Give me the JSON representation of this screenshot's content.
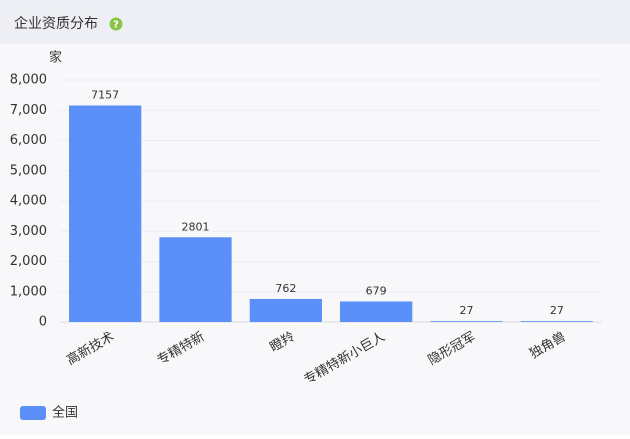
{
  "chart_data": {
    "type": "bar",
    "title": "企业资质分布",
    "y_label": "家",
    "categories": [
      "高新技术",
      "专精特新",
      "瞪羚",
      "专精特新小巨人",
      "隐形冠军",
      "独角兽"
    ],
    "series": [
      {
        "name": "全国",
        "color": "#5b8ff9",
        "values": [
          7157,
          2801,
          762,
          679,
          27,
          27
        ]
      }
    ],
    "ylim": [
      0,
      8000
    ],
    "yticks": [
      0,
      {
        "value": 1000,
        "label": "1,000"
      },
      {
        "value": 2000,
        "label": "2,000"
      },
      {
        "value": 3000,
        "label": "3,000"
      },
      {
        "value": 4000,
        "label": "4,000"
      },
      {
        "value": 5000,
        "label": "5,000"
      },
      {
        "value": 6000,
        "label": "6,000"
      },
      {
        "value": 7000,
        "label": "7,000"
      },
      {
        "value": 8000,
        "label": "8,000"
      }
    ],
    "grid": true,
    "legend": "bottom-left"
  }
}
